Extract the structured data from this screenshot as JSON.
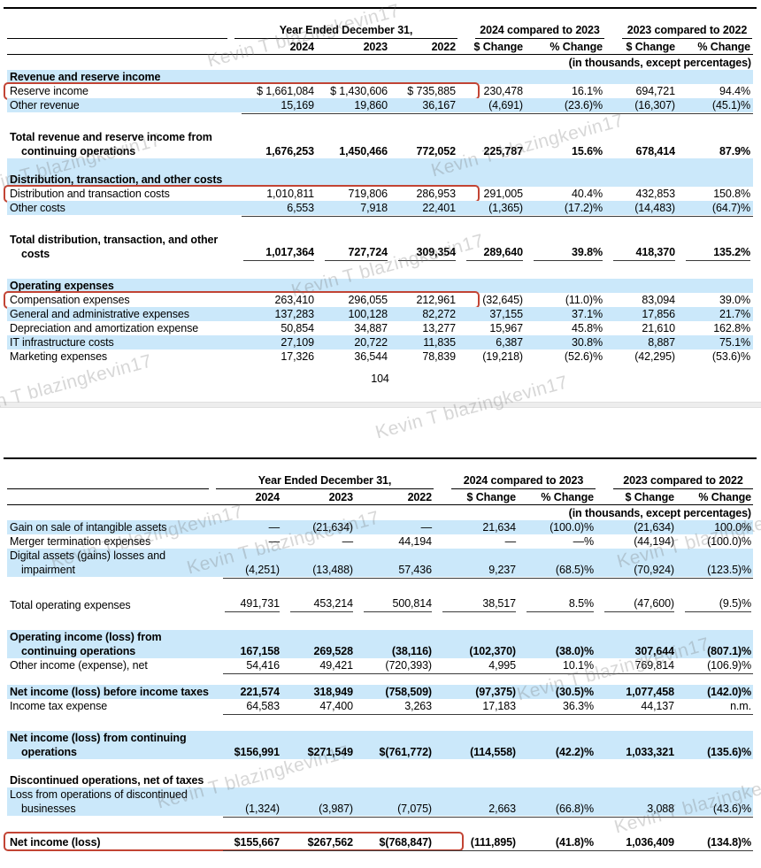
{
  "page_number": "104",
  "watermark": {
    "text": "Kevin T blazingkevin17",
    "positions": [
      [
        235,
        62
      ],
      [
        -35,
        208
      ],
      [
        488,
        186
      ],
      [
        330,
        322
      ],
      [
        -45,
        458
      ],
      [
        425,
        482
      ],
      [
        58,
        628
      ],
      [
        212,
        635
      ],
      [
        698,
        628
      ],
      [
        585,
        778
      ],
      [
        178,
        900
      ],
      [
        695,
        928
      ]
    ]
  },
  "colors": {
    "row_blue": "#cbe8fa",
    "highlight_red": "#c24434",
    "rule_black": "#000000",
    "underline_gray": "#3b3b3b"
  },
  "tables": [
    {
      "name": "revenue-and-costs-table",
      "header": {
        "group_year": "Year Ended December 31,",
        "group_cmp1": "2024 compared to 2023",
        "group_cmp2": "2023 compared to 2022",
        "columns": [
          "2024",
          "2023",
          "2022",
          "$ Change",
          "% Change",
          "$ Change",
          "% Change"
        ],
        "note": "(in thousands, except percentages)"
      },
      "rows": [
        {
          "label": "Revenue and reserve income",
          "section": true,
          "blue": true,
          "bold": true
        },
        {
          "label": "Reserve income",
          "values": [
            "$ 1,661,084",
            "$ 1,430,606",
            "$ 735,885",
            "230,478",
            "16.1%",
            "694,721",
            "94.4%"
          ],
          "redbox": true
        },
        {
          "label": "Other revenue",
          "values": [
            "15,169",
            "19,860",
            "36,167",
            "(4,691)",
            "(23.6)%",
            "(16,307)",
            "(45.1)%"
          ],
          "blue": true,
          "underline": "cont"
        },
        {
          "spacer": 20
        },
        {
          "label": "Total revenue and reserve income from continuing operations",
          "values": [
            "1,676,253",
            "1,450,466",
            "772,052",
            "225,787",
            "15.6%",
            "678,414",
            "87.9%"
          ],
          "bold": true
        },
        {
          "label": "Distribution, transaction, and other costs",
          "section": true,
          "blue": true,
          "bold": true,
          "minh": 32
        },
        {
          "label": "Distribution and transaction costs",
          "values": [
            "1,010,811",
            "719,806",
            "286,953",
            "291,005",
            "40.4%",
            "432,853",
            "150.8%"
          ],
          "redbox": true
        },
        {
          "label": "Other costs",
          "values": [
            "6,553",
            "7,918",
            "22,401",
            "(1,365)",
            "(17.2)%",
            "(14,483)",
            "(64.7)%"
          ],
          "blue": true,
          "underline": "cont"
        },
        {
          "spacer": 20
        },
        {
          "label": "Total distribution, transaction, and other costs",
          "values": [
            "1,017,364",
            "727,724",
            "309,354",
            "289,640",
            "39.8%",
            "418,370",
            "135.2%"
          ],
          "bold": true,
          "underline": "seg"
        },
        {
          "spacer": 20
        },
        {
          "label": "Operating expenses",
          "section": true,
          "blue": true,
          "bold": true
        },
        {
          "label": "Compensation expenses",
          "values": [
            "263,410",
            "296,055",
            "212,961",
            "(32,645)",
            "(11.0)%",
            "83,094",
            "39.0%"
          ],
          "redbox": true
        },
        {
          "label": "General and administrative expenses",
          "values": [
            "137,283",
            "100,128",
            "82,272",
            "37,155",
            "37.1%",
            "17,856",
            "21.7%"
          ],
          "blue": true
        },
        {
          "label": "Depreciation and amortization expense",
          "values": [
            "50,854",
            "34,887",
            "13,277",
            "15,967",
            "45.8%",
            "21,610",
            "162.8%"
          ]
        },
        {
          "label": "IT infrastructure costs",
          "values": [
            "27,109",
            "20,722",
            "11,835",
            "6,387",
            "30.8%",
            "8,887",
            "75.1%"
          ],
          "blue": true
        },
        {
          "label": "Marketing expenses",
          "values": [
            "17,326",
            "36,544",
            "78,839",
            "(19,218)",
            "(52.6)%",
            "(42,295)",
            "(53.6)%"
          ]
        }
      ]
    },
    {
      "name": "operating-and-net-income-table",
      "header": {
        "group_year": "Year Ended December 31,",
        "group_cmp1": "2024 compared to 2023",
        "group_cmp2": "2023 compared to 2022",
        "columns": [
          "2024",
          "2023",
          "2022",
          "$ Change",
          "% Change",
          "$ Change",
          "% Change"
        ],
        "note": "(in thousands, except percentages)"
      },
      "rows": [
        {
          "label": "Gain on sale of intangible assets",
          "values": [
            "—",
            "(21,634)",
            "—",
            "21,634",
            "(100.0)%",
            "(21,634)",
            "100.0%"
          ],
          "blue": true
        },
        {
          "label": "Merger termination expenses",
          "values": [
            "—",
            "—",
            "44,194",
            "—",
            "—%",
            "(44,194)",
            "(100.0)%"
          ]
        },
        {
          "label": "Digital assets (gains) losses and impairment",
          "values": [
            "(4,251)",
            "(13,488)",
            "57,436",
            "9,237",
            "(68.5)%",
            "(70,924)",
            "(123.5)%"
          ],
          "blue": true,
          "underline": "cont"
        },
        {
          "spacer": 22
        },
        {
          "label": "Total operating expenses",
          "values": [
            "491,731",
            "453,214",
            "500,814",
            "38,517",
            "8.5%",
            "(47,600)",
            "(9.5)%"
          ],
          "underline": "seg"
        },
        {
          "spacer": 20
        },
        {
          "label": "Operating income (loss) from continuing operations",
          "values": [
            "167,158",
            "269,528",
            "(38,116)",
            "(102,370)",
            "(38.0)%",
            "307,644",
            "(807.1)%"
          ],
          "blue": true,
          "bold": true
        },
        {
          "label": "Other income (expense), net",
          "values": [
            "54,416",
            "49,421",
            "(720,393)",
            "4,995",
            "10.1%",
            "769,814",
            "(106.9)%"
          ],
          "underline": "cont"
        },
        {
          "spacer": 14
        },
        {
          "label": "Net income (loss) before income taxes",
          "values": [
            "221,574",
            "318,949",
            "(758,509)",
            "(97,375)",
            "(30.5)%",
            "1,077,458",
            "(142.0)%"
          ],
          "blue": true,
          "bold": true
        },
        {
          "label": "Income tax expense",
          "values": [
            "64,583",
            "47,400",
            "3,263",
            "17,183",
            "36.3%",
            "44,137",
            "n.m."
          ],
          "underline": "cont"
        },
        {
          "spacer": 20
        },
        {
          "label": "Net income (loss) from continuing operations",
          "values": [
            "$156,991",
            "$271,549",
            "$(761,772)",
            "(114,558)",
            "(42.2)%",
            "1,033,321",
            "(135.6)%"
          ],
          "blue": true,
          "bold": true
        },
        {
          "label": "Discontinued operations, net of taxes",
          "section": true,
          "bold": true,
          "minh": 32
        },
        {
          "label": "Loss from operations of discontinued businesses",
          "values": [
            "(1,324)",
            "(3,987)",
            "(7,075)",
            "2,663",
            "(66.8)%",
            "3,088",
            "(43.6)%"
          ],
          "blue": true,
          "underline": "cont"
        },
        {
          "spacer": 20
        },
        {
          "label": "Net income (loss)",
          "values": [
            "$155,667",
            "$267,562",
            "$(768,847)",
            "(111,895)",
            "(41.8)%",
            "1,036,409",
            "(134.8)%"
          ],
          "bold": true,
          "redbox": true,
          "underline": "cont",
          "minh": 18
        }
      ]
    }
  ]
}
